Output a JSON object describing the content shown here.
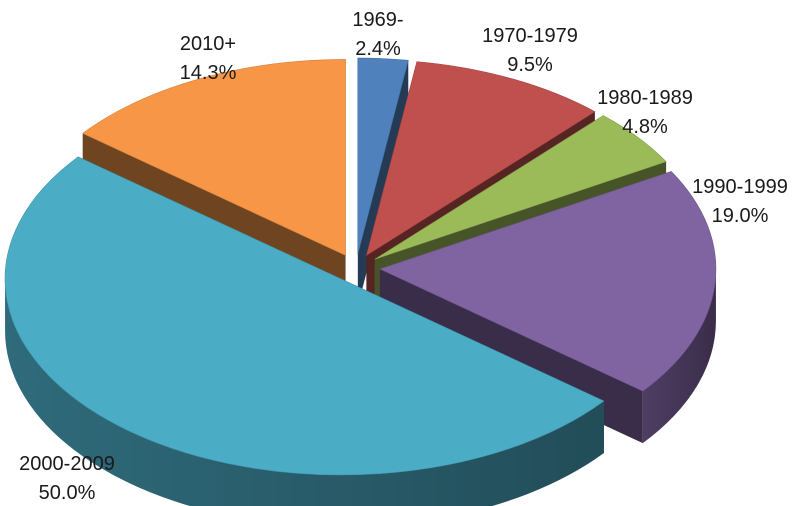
{
  "chart_data": {
    "type": "pie",
    "style": "3d-exploded",
    "title": "",
    "legend": "none",
    "slices": [
      {
        "label": "1969-",
        "percent_text": "2.4%",
        "value": 2.4,
        "color": "#4f81bd"
      },
      {
        "label": "1970-1979",
        "percent_text": "9.5%",
        "value": 9.5,
        "color": "#c0504d"
      },
      {
        "label": "1980-1989",
        "percent_text": "4.8%",
        "value": 4.8,
        "color": "#9bbb59"
      },
      {
        "label": "1990-1999",
        "percent_text": "19.0%",
        "value": 19.0,
        "color": "#8064a2"
      },
      {
        "label": "2000-2009",
        "percent_text": "50.0%",
        "value": 50.0,
        "color": "#4bacc6"
      },
      {
        "label": "2010+",
        "percent_text": "14.3%",
        "value": 14.3,
        "color": "#f79646"
      }
    ]
  }
}
